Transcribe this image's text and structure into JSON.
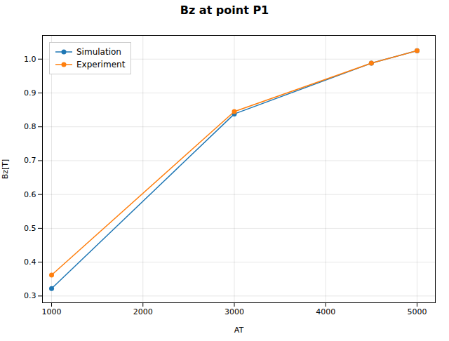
{
  "chart_data": {
    "type": "line",
    "title": "Bz at point P1",
    "xlabel": "AT",
    "ylabel": "Bz[T]",
    "x": [
      1000,
      3000,
      4500,
      5000
    ],
    "series": [
      {
        "name": "Simulation",
        "color": "#1f77b4",
        "marker": "o",
        "values": [
          0.322,
          0.838,
          0.988,
          1.025
        ]
      },
      {
        "name": "Experiment",
        "color": "#ff7f0e",
        "marker": "o",
        "values": [
          0.362,
          0.845,
          0.988,
          1.025
        ]
      }
    ],
    "xlim": [
      900,
      5200
    ],
    "ylim": [
      0.28,
      1.07
    ],
    "xticks": [
      1000,
      2000,
      3000,
      4000,
      5000
    ],
    "yticks": [
      0.3,
      0.4,
      0.5,
      0.6,
      0.7,
      0.8,
      0.9,
      {
        "value": 1.0,
        "label": "1.0"
      }
    ],
    "grid": true,
    "legend": "upper left"
  }
}
